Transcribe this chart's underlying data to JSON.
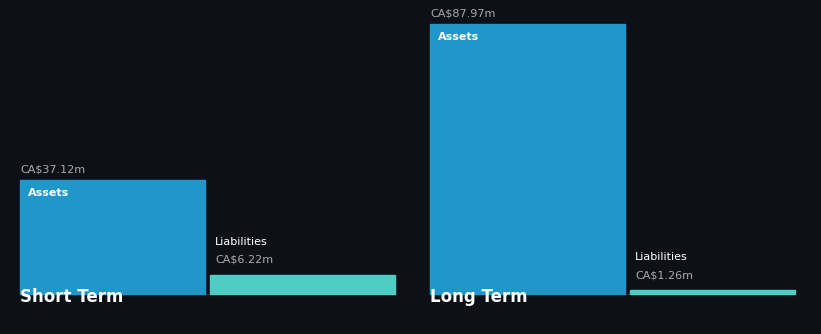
{
  "background_color": "#0d1117",
  "short_term": {
    "assets_value": 37.12,
    "liabilities_value": 6.22,
    "assets_label": "Assets",
    "liabilities_label": "Liabilities",
    "assets_color": "#2196c8",
    "liabilities_color": "#4ecdc4",
    "section_title": "Short Term",
    "assets_display": "CA$37.12m",
    "liabilities_display": "CA$6.22m"
  },
  "long_term": {
    "assets_value": 87.97,
    "liabilities_value": 1.26,
    "assets_label": "Assets",
    "liabilities_label": "Liabilities",
    "assets_color": "#2196c8",
    "liabilities_color": "#4ecdc4",
    "section_title": "Long Term",
    "assets_display": "CA$87.97m",
    "liabilities_display": "CA$1.26m"
  },
  "text_color": "#ffffff",
  "label_color": "#aaaaaa",
  "title_fontsize": 12,
  "value_fontsize": 8,
  "bar_label_fontsize": 8,
  "baseline_color": "#333344"
}
